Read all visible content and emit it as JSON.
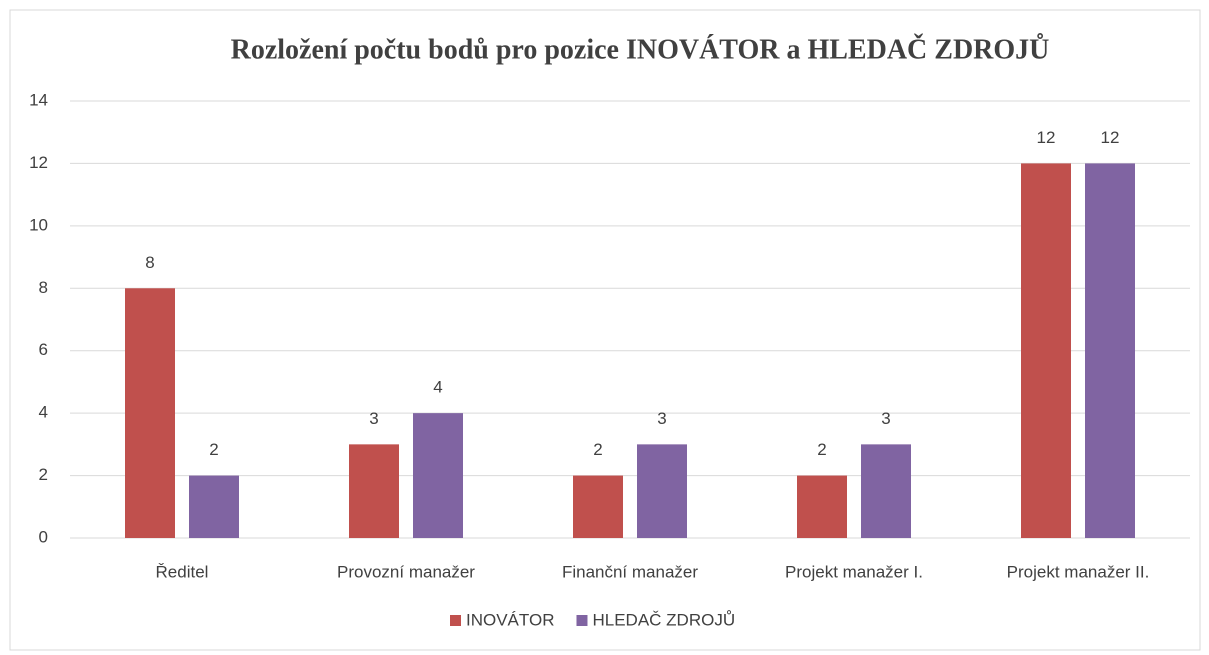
{
  "chart_data": {
    "type": "bar",
    "title": "Rozložení počtu bodů pro pozice INOVÁTOR a HLEDAČ ZDROJŮ",
    "categories": [
      "Ředitel",
      "Provozní manažer",
      "Finanční manažer",
      "Projekt manažer I.",
      "Projekt manažer II."
    ],
    "series": [
      {
        "name": "INOVÁTOR",
        "color": "#c0504d",
        "values": [
          8,
          3,
          2,
          2,
          12
        ]
      },
      {
        "name": "HLEDAČ ZDROJŮ",
        "color": "#8064a2",
        "values": [
          2,
          4,
          3,
          3,
          12
        ]
      }
    ],
    "ylim": [
      0,
      14
    ],
    "yticks": [
      0,
      2,
      4,
      6,
      8,
      10,
      12,
      14
    ],
    "grid": true,
    "legend": "bottom"
  }
}
